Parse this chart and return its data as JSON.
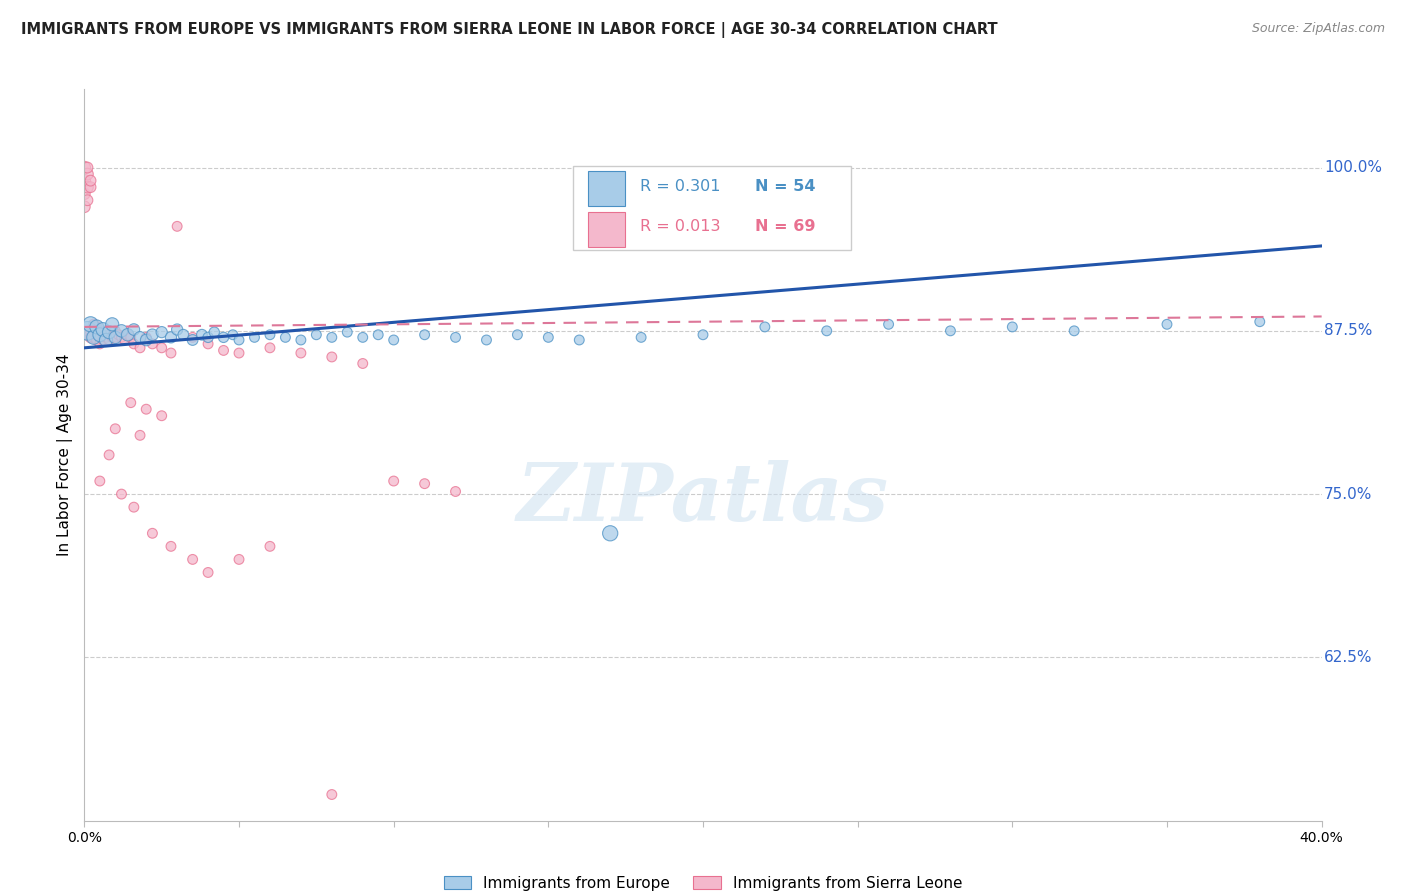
{
  "title": "IMMIGRANTS FROM EUROPE VS IMMIGRANTS FROM SIERRA LEONE IN LABOR FORCE | AGE 30-34 CORRELATION CHART",
  "source": "Source: ZipAtlas.com",
  "ylabel": "In Labor Force | Age 30-34",
  "xlim": [
    0.0,
    0.4
  ],
  "ylim": [
    0.5,
    1.06
  ],
  "legend_r1": "R = 0.301",
  "legend_n1": "N = 54",
  "legend_r2": "R = 0.013",
  "legend_n2": "N = 69",
  "color_europe": "#a8cce8",
  "color_sierra": "#f4b8cc",
  "edge_europe": "#4a90c4",
  "edge_sierra": "#e87090",
  "line_europe_color": "#2255aa",
  "line_sierra_color": "#dd7799",
  "watermark": "ZIPatlas",
  "europe_x": [
    0.001,
    0.002,
    0.003,
    0.004,
    0.005,
    0.006,
    0.007,
    0.008,
    0.009,
    0.01,
    0.012,
    0.014,
    0.016,
    0.018,
    0.02,
    0.022,
    0.025,
    0.028,
    0.03,
    0.032,
    0.035,
    0.038,
    0.04,
    0.042,
    0.045,
    0.048,
    0.05,
    0.055,
    0.06,
    0.065,
    0.07,
    0.075,
    0.08,
    0.085,
    0.09,
    0.095,
    0.1,
    0.11,
    0.12,
    0.13,
    0.14,
    0.15,
    0.16,
    0.17,
    0.18,
    0.2,
    0.22,
    0.24,
    0.26,
    0.28,
    0.3,
    0.32,
    0.35,
    0.38
  ],
  "europe_y": [
    0.875,
    0.88,
    0.87,
    0.878,
    0.872,
    0.876,
    0.868,
    0.874,
    0.88,
    0.87,
    0.875,
    0.872,
    0.876,
    0.87,
    0.868,
    0.872,
    0.874,
    0.87,
    0.876,
    0.872,
    0.868,
    0.872,
    0.87,
    0.874,
    0.87,
    0.872,
    0.868,
    0.87,
    0.872,
    0.87,
    0.868,
    0.872,
    0.87,
    0.874,
    0.87,
    0.872,
    0.868,
    0.872,
    0.87,
    0.868,
    0.872,
    0.87,
    0.868,
    0.72,
    0.87,
    0.872,
    0.878,
    0.875,
    0.88,
    0.875,
    0.878,
    0.875,
    0.88,
    0.882
  ],
  "europe_size": [
    180,
    120,
    100,
    100,
    100,
    100,
    90,
    90,
    90,
    80,
    80,
    80,
    70,
    70,
    70,
    70,
    65,
    65,
    65,
    60,
    60,
    60,
    55,
    55,
    55,
    50,
    50,
    50,
    50,
    50,
    50,
    50,
    50,
    50,
    50,
    50,
    50,
    50,
    50,
    50,
    50,
    50,
    50,
    120,
    50,
    50,
    50,
    50,
    50,
    50,
    50,
    50,
    50,
    50
  ],
  "sierra_x": [
    0.0,
    0.0,
    0.0,
    0.0,
    0.001,
    0.001,
    0.001,
    0.001,
    0.002,
    0.002,
    0.002,
    0.002,
    0.003,
    0.003,
    0.003,
    0.004,
    0.004,
    0.004,
    0.005,
    0.005,
    0.005,
    0.006,
    0.006,
    0.007,
    0.007,
    0.008,
    0.008,
    0.009,
    0.01,
    0.01,
    0.011,
    0.012,
    0.013,
    0.014,
    0.015,
    0.016,
    0.018,
    0.02,
    0.022,
    0.025,
    0.028,
    0.03,
    0.035,
    0.04,
    0.045,
    0.05,
    0.06,
    0.07,
    0.08,
    0.09,
    0.1,
    0.11,
    0.12,
    0.015,
    0.02,
    0.025,
    0.01,
    0.018,
    0.008,
    0.005,
    0.012,
    0.016,
    0.022,
    0.028,
    0.035,
    0.04,
    0.05,
    0.06,
    0.08
  ],
  "sierra_y": [
    0.99,
    1.0,
    0.98,
    0.97,
    0.995,
    0.985,
    1.0,
    0.975,
    0.985,
    0.99,
    0.87,
    0.875,
    0.88,
    0.875,
    0.87,
    0.878,
    0.872,
    0.868,
    0.875,
    0.87,
    0.865,
    0.872,
    0.868,
    0.875,
    0.87,
    0.872,
    0.868,
    0.87,
    0.875,
    0.87,
    0.872,
    0.87,
    0.868,
    0.872,
    0.87,
    0.865,
    0.862,
    0.87,
    0.865,
    0.862,
    0.858,
    0.955,
    0.87,
    0.865,
    0.86,
    0.858,
    0.862,
    0.858,
    0.855,
    0.85,
    0.76,
    0.758,
    0.752,
    0.82,
    0.815,
    0.81,
    0.8,
    0.795,
    0.78,
    0.76,
    0.75,
    0.74,
    0.72,
    0.71,
    0.7,
    0.69,
    0.7,
    0.71,
    0.52
  ],
  "sierra_size": [
    80,
    80,
    70,
    70,
    70,
    70,
    60,
    60,
    60,
    60,
    60,
    60,
    55,
    55,
    55,
    55,
    55,
    55,
    50,
    50,
    50,
    50,
    50,
    50,
    50,
    50,
    50,
    50,
    50,
    50,
    50,
    50,
    50,
    50,
    50,
    50,
    50,
    50,
    50,
    50,
    50,
    50,
    50,
    50,
    50,
    50,
    50,
    50,
    50,
    50,
    50,
    50,
    50,
    50,
    50,
    50,
    50,
    50,
    50,
    50,
    50,
    50,
    50,
    50,
    50,
    50,
    50,
    50,
    50
  ],
  "europe_trend_x": [
    0.0,
    0.4
  ],
  "europe_trend_y": [
    0.862,
    0.94
  ],
  "sierra_trend_x": [
    0.0,
    0.4
  ],
  "sierra_trend_y": [
    0.878,
    0.886
  ],
  "grid_yticks": [
    1.0,
    0.875,
    0.75,
    0.625
  ],
  "grid_ytick_labels": [
    "100.0%",
    "87.5%",
    "75.0%",
    "62.5%"
  ],
  "xtick_positions": [
    0.0,
    0.05,
    0.1,
    0.15,
    0.2,
    0.25,
    0.3,
    0.35,
    0.4
  ],
  "xtick_labels": [
    "0.0%",
    "",
    "",
    "",
    "",
    "",
    "",
    "",
    "40.0%"
  ]
}
